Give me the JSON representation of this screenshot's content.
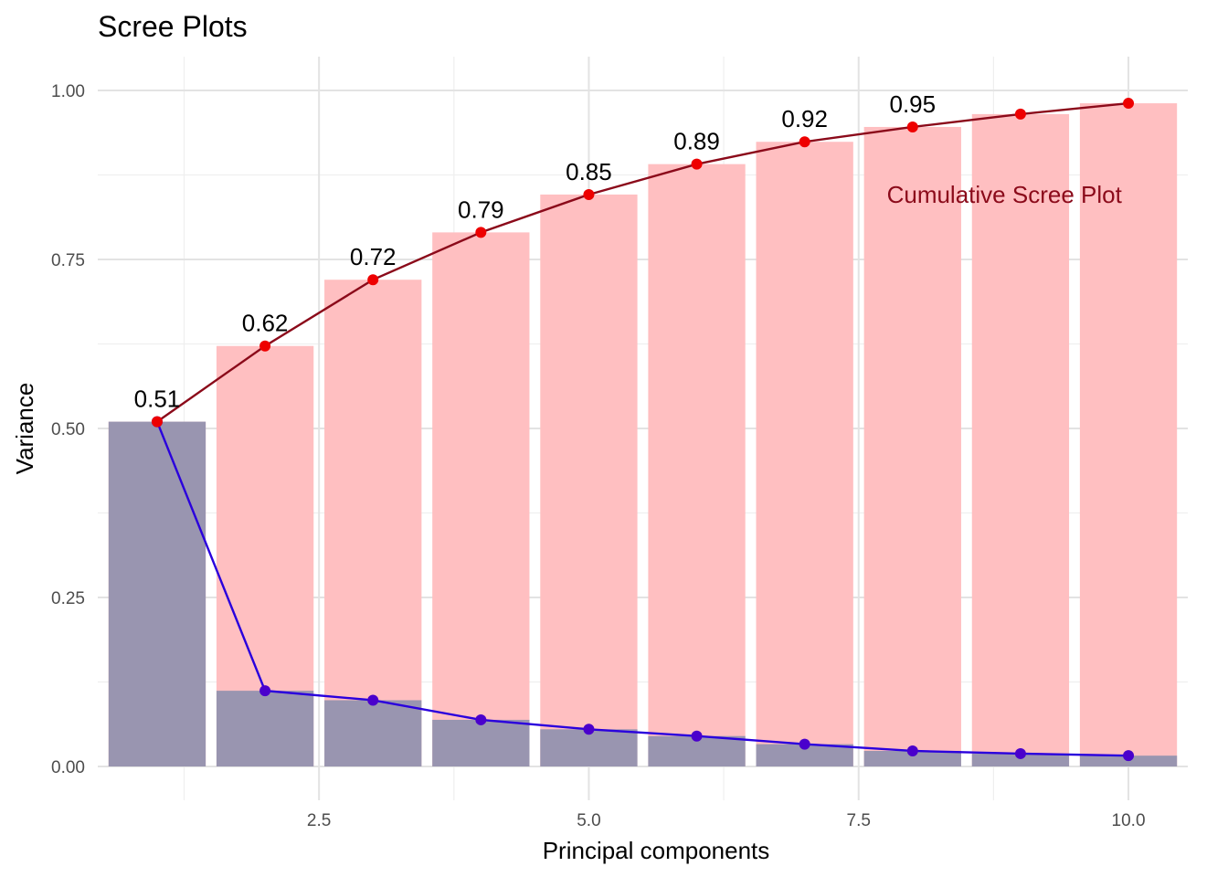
{
  "chart_data": {
    "type": "bar",
    "title": "Scree Plots",
    "xlabel": "Principal components",
    "ylabel": "Variance",
    "xlim": [
      0.45,
      10.55
    ],
    "ylim": [
      -0.05,
      1.05
    ],
    "x_ticks": [
      2.5,
      5.0,
      7.5,
      10.0
    ],
    "x_tick_labels": [
      "2.5",
      "5.0",
      "7.5",
      "10.0"
    ],
    "y_ticks": [
      0.0,
      0.25,
      0.5,
      0.75,
      1.0
    ],
    "y_tick_labels": [
      "0.00",
      "0.25",
      "0.50",
      "0.75",
      "1.00"
    ],
    "grid": true,
    "x": [
      1,
      2,
      3,
      4,
      5,
      6,
      7,
      8,
      9,
      10
    ],
    "series": [
      {
        "kind": "cumulative",
        "values": [
          0.51,
          0.622,
          0.72,
          0.79,
          0.846,
          0.891,
          0.924,
          0.946,
          0.965,
          0.981
        ],
        "bar_color": "#ffbfc1",
        "line_color": "#8b0a1a",
        "point_color": "#ee0000"
      },
      {
        "kind": "individual",
        "values": [
          0.51,
          0.112,
          0.098,
          0.069,
          0.055,
          0.045,
          0.033,
          0.023,
          0.019,
          0.016
        ],
        "bar_color": "#9995b0",
        "line_color": "#2a00dd",
        "point_color": "#4a00cc"
      }
    ],
    "data_labels": [
      {
        "x": 1,
        "text": "0.51"
      },
      {
        "x": 2,
        "text": "0.62"
      },
      {
        "x": 3,
        "text": "0.72"
      },
      {
        "x": 4,
        "text": "0.79"
      },
      {
        "x": 5,
        "text": "0.85"
      },
      {
        "x": 6,
        "text": "0.89"
      },
      {
        "x": 7,
        "text": "0.92"
      },
      {
        "x": 8,
        "text": "0.95"
      }
    ],
    "annotation": {
      "text": "Cumulative Scree Plot",
      "x": 8.85,
      "y": 0.846,
      "color": "#8b0a1a"
    }
  }
}
